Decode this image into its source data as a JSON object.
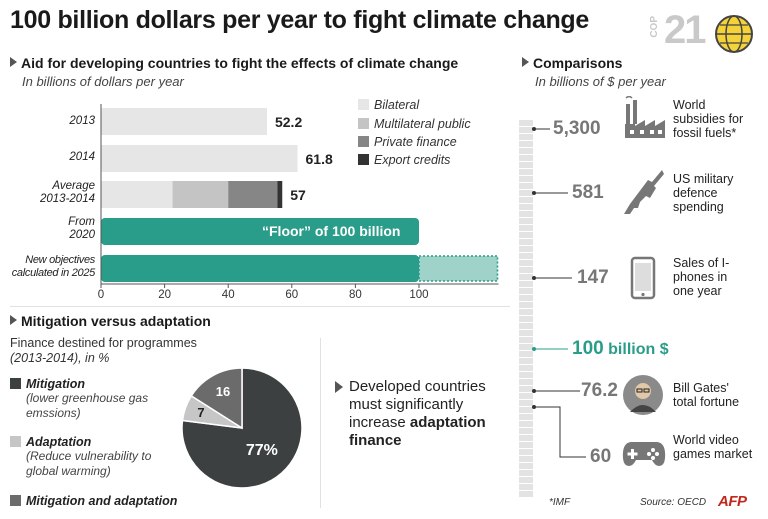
{
  "title": "100 billion dollars per year to fight climate change",
  "cop_logo": {
    "small": "COP",
    "big": "21"
  },
  "aid": {
    "heading": "Aid for developing countries to fight the effects of climate change",
    "subheading": "In billions of dollars per year",
    "rows": [
      {
        "label_lines": [
          "2013"
        ],
        "value_label": "52.2"
      },
      {
        "label_lines": [
          "2014"
        ],
        "value_label": "61.8"
      },
      {
        "label_lines": [
          "Average",
          "2013-2014"
        ],
        "value_label": "57"
      },
      {
        "label_lines": [
          "From",
          "2020"
        ],
        "value_label": "“Floor” of 100 billion"
      },
      {
        "label_lines": [
          "New objectives",
          "calculated in 2025"
        ],
        "value_label": ""
      }
    ],
    "legend": [
      "Bilateral",
      "Multilateral public",
      "Private finance",
      "Export credits"
    ]
  },
  "mitigation": {
    "heading": "Mitigation versus adaptation",
    "subheading": "Finance destined for programmes",
    "subheading2": "(2013-2014), in %",
    "items": [
      {
        "title": "Mitigation",
        "desc": "(lower greenhouse gas emssions)"
      },
      {
        "title": "Adaptation",
        "desc": "(Reduce vulnerability to global warming)"
      },
      {
        "title": "Mitigation and adaptation",
        "desc": ""
      }
    ],
    "slice_labels": [
      "77%",
      "7",
      "16"
    ]
  },
  "callout": {
    "text_plain": "Developed countries must significantly increase ",
    "text_bold": "adaptation finance"
  },
  "comparisons": {
    "heading": "Comparisons",
    "subheading": "In billions of $ per year",
    "items": [
      {
        "value": "5,300",
        "label": "World subsidies for fossil fuels*",
        "icon": "factory-icon"
      },
      {
        "value": "581",
        "label": "US military defence spending",
        "icon": "rifle-icon"
      },
      {
        "value": "147",
        "label": "Sales of I-phones in one year",
        "icon": "phone-icon"
      },
      {
        "value": "100",
        "unit": "billion $",
        "label": "",
        "icon": ""
      },
      {
        "value": "76.2",
        "label": "Bill Gates' total fortune",
        "icon": "portrait-icon"
      },
      {
        "value": "60",
        "label": "World video games market",
        "icon": "gamepad-icon"
      }
    ]
  },
  "footer": {
    "note": "*IMF",
    "source": "Source: OECD",
    "logo": "AFP"
  },
  "colors": {
    "teal": "#2a9d8a",
    "bilateral": "#e6e6e6",
    "multilateral": "#c4c4c4",
    "private": "#868686",
    "export": "#333333",
    "mitigation": "#3d4040",
    "adaptation": "#c6c6c6",
    "both": "#6b6b6b"
  },
  "chart_data": [
    {
      "type": "bar",
      "orientation": "horizontal",
      "stacked": true,
      "categories": [
        "2013",
        "2014",
        "Average 2013-2014",
        "From 2020",
        "New objectives calculated in 2025"
      ],
      "series": [
        {
          "name": "Bilateral",
          "values": [
            52.2,
            61.8,
            22.5,
            null,
            null
          ]
        },
        {
          "name": "Multilateral public",
          "values": [
            null,
            null,
            17.5,
            null,
            null
          ]
        },
        {
          "name": "Private finance",
          "values": [
            null,
            null,
            15.5,
            null,
            null
          ]
        },
        {
          "name": "Export credits",
          "values": [
            null,
            null,
            1.5,
            null,
            null
          ]
        }
      ],
      "floor": [
        null,
        null,
        null,
        100,
        100
      ],
      "beyond_floor_dashed": [
        null,
        null,
        null,
        null,
        25
      ],
      "value_labels": [
        "52.2",
        "61.8",
        "57"
      ],
      "xticks": [
        0,
        20,
        40,
        60,
        80,
        100
      ],
      "xlim": [
        0,
        125
      ],
      "title": "Aid for developing countries to fight the effects of climate change",
      "subtitle": "In billions of dollars per year"
    },
    {
      "type": "pie",
      "categories": [
        "Mitigation",
        "Adaptation",
        "Mitigation and adaptation"
      ],
      "values": [
        77,
        7,
        16
      ],
      "title": "Mitigation versus adaptation"
    },
    {
      "type": "scatter",
      "axis": "vertical scale",
      "categories": [
        "World subsidies for fossil fuels*",
        "US military defence spending",
        "Sales of I-phones in one year",
        "100 billion $",
        "Bill Gates' total fortune",
        "World video games market"
      ],
      "values": [
        5300,
        581,
        147,
        100,
        76.2,
        60
      ],
      "title": "Comparisons",
      "subtitle": "In billions of $ per year"
    }
  ]
}
